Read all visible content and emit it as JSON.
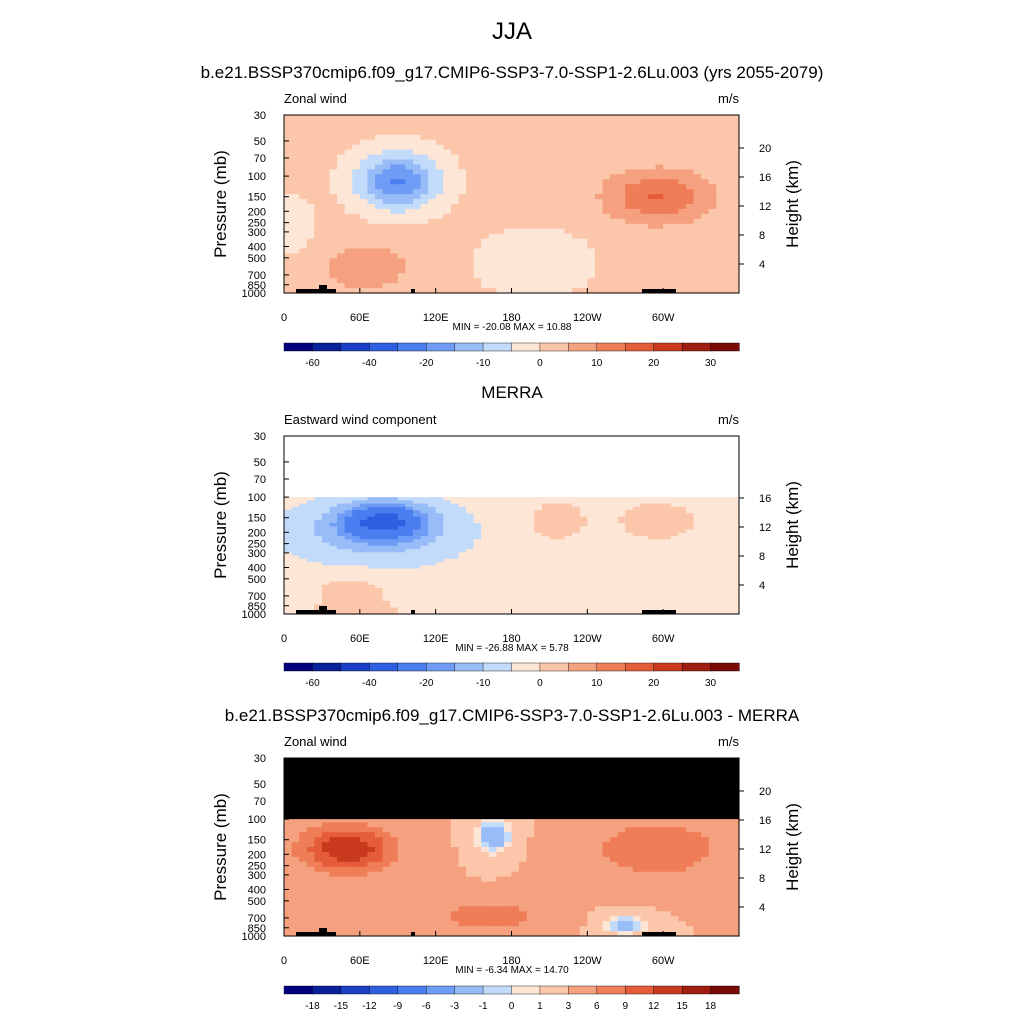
{
  "page": {
    "title": "JJA"
  },
  "colors": {
    "palette": [
      "#00007f",
      "#0a1f9a",
      "#1b3fc4",
      "#2d5fe0",
      "#4a7ef0",
      "#6f9df5",
      "#98bcf8",
      "#c3dbfb",
      "#fde6d6",
      "#fbc6aa",
      "#f5a07e",
      "#ef7d58",
      "#e55c38",
      "#c8391e",
      "#a01e10",
      "#7a0a06"
    ],
    "mask": "#000000",
    "topo": "#000000"
  },
  "chart_data": [
    {
      "type": "heatmap",
      "title": "b.e21.BSSP370cmip6.f09_g17.CMIP6-SSP3-7.0-SSP1-2.6Lu.003 (yrs 2055-2079)",
      "left_string": "Zonal wind",
      "right_string": "m/s",
      "xlabel": "",
      "ylabel": "Pressure (mb)",
      "ylabel_right": "Height (km)",
      "x_ticks": [
        "0",
        "60E",
        "120E",
        "180",
        "120W",
        "60W"
      ],
      "y_ticks": [
        "30",
        "50",
        "70",
        "100",
        "150",
        "200",
        "250",
        "300",
        "400",
        "500",
        "700",
        "850",
        "1000"
      ],
      "y_right_ticks": [
        "20",
        "16",
        "12",
        "8",
        "4"
      ],
      "stats": "MIN = -20.08  MAX =  10.88",
      "min": -20.08,
      "max": 10.88,
      "colorbar_levels": [
        "-60",
        "-40",
        "-20",
        "-10",
        "0",
        "10",
        "20",
        "30"
      ],
      "top_pressure_mb": 30,
      "masked_above_mb": null
    },
    {
      "type": "heatmap",
      "title": "MERRA",
      "left_string": "Eastward wind component",
      "right_string": "m/s",
      "xlabel": "",
      "ylabel": "Pressure (mb)",
      "ylabel_right": "Height (km)",
      "x_ticks": [
        "0",
        "60E",
        "120E",
        "180",
        "120W",
        "60W"
      ],
      "y_ticks": [
        "30",
        "50",
        "70",
        "100",
        "150",
        "200",
        "250",
        "300",
        "400",
        "500",
        "700",
        "850",
        "1000"
      ],
      "y_right_ticks": [
        "16",
        "12",
        "8",
        "4"
      ],
      "stats": "MIN = -26.88  MAX =   5.78",
      "min": -26.88,
      "max": 5.78,
      "colorbar_levels": [
        "-60",
        "-40",
        "-20",
        "-10",
        "0",
        "10",
        "20",
        "30"
      ],
      "top_pressure_mb": 100,
      "masked_above_mb": null
    },
    {
      "type": "heatmap",
      "title": "b.e21.BSSP370cmip6.f09_g17.CMIP6-SSP3-7.0-SSP1-2.6Lu.003 - MERRA",
      "left_string": "Zonal wind",
      "right_string": "m/s",
      "xlabel": "",
      "ylabel": "Pressure (mb)",
      "ylabel_right": "Height (km)",
      "x_ticks": [
        "0",
        "60E",
        "120E",
        "180",
        "120W",
        "60W"
      ],
      "y_ticks": [
        "30",
        "50",
        "70",
        "100",
        "150",
        "200",
        "250",
        "300",
        "400",
        "500",
        "700",
        "850",
        "1000"
      ],
      "y_right_ticks": [
        "20",
        "16",
        "12",
        "8",
        "4"
      ],
      "stats": "MIN = -6.34  MAX = 14.70",
      "min": -6.34,
      "max": 14.7,
      "colorbar_levels": [
        "-18",
        "-15",
        "-12",
        "-9",
        "-6",
        "-3",
        "-1",
        "0",
        "1",
        "3",
        "6",
        "9",
        "12",
        "15",
        "18"
      ],
      "top_pressure_mb": 30,
      "masked_above_mb": 100
    }
  ]
}
